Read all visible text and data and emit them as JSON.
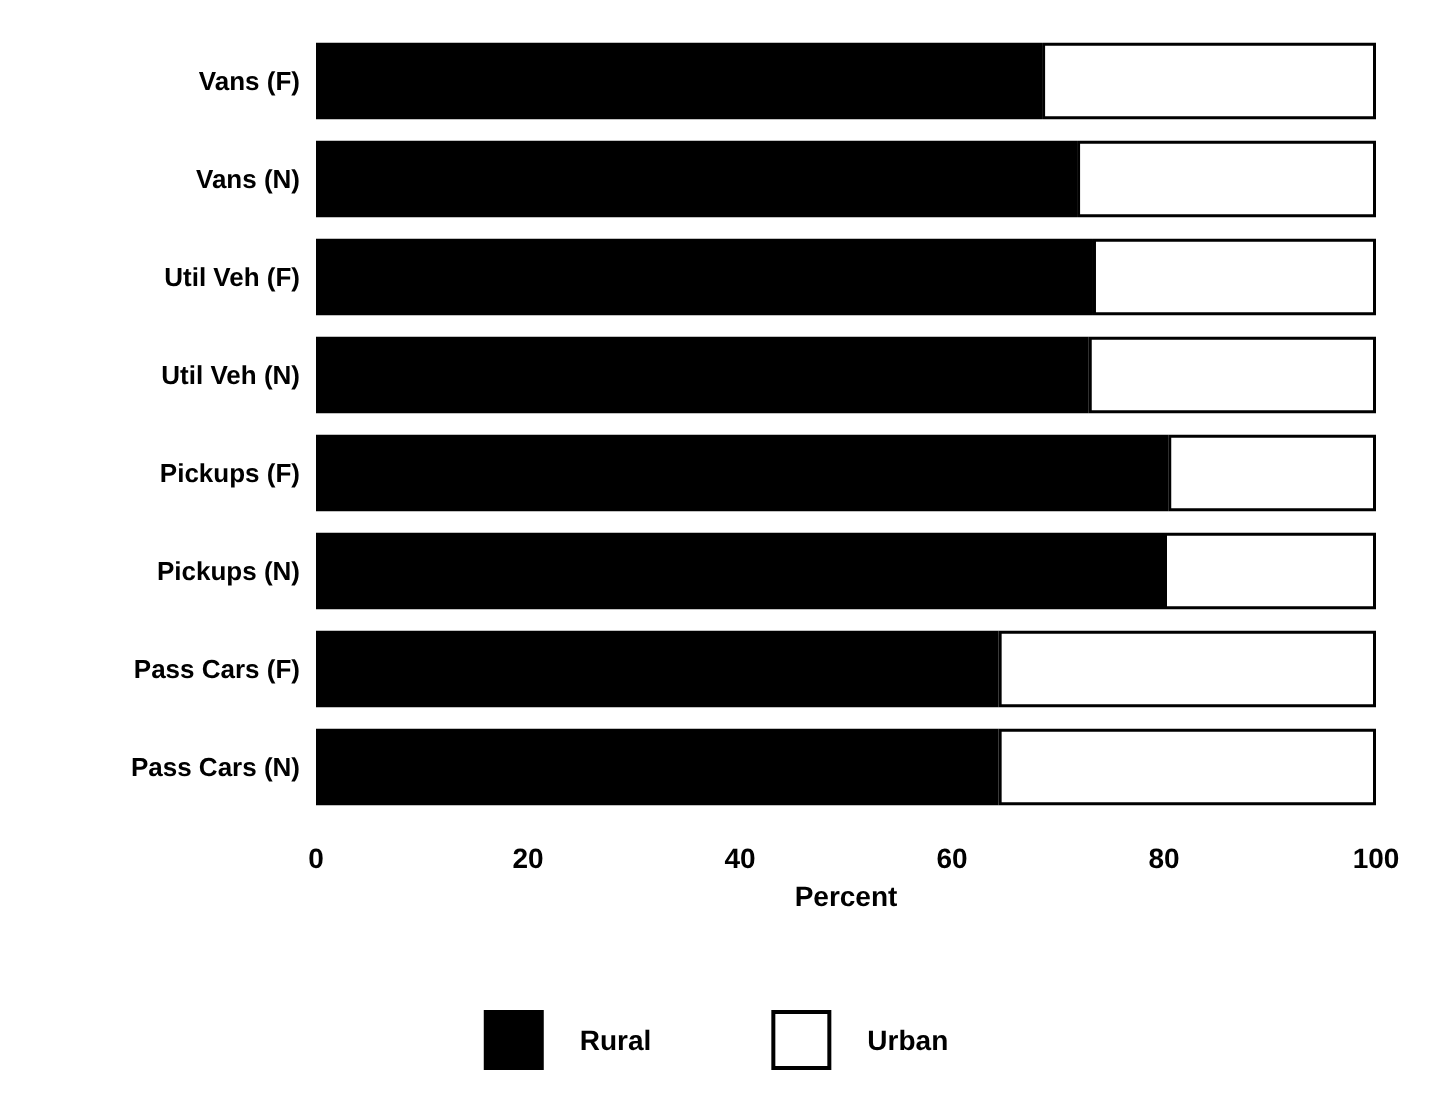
{
  "chart_data": {
    "type": "bar",
    "orientation": "horizontal",
    "stacked": true,
    "xlabel": "Percent",
    "categories": [
      "Vans (F)",
      "Vans (N)",
      "Util Veh (F)",
      "Util Veh (N)",
      "Pickups (F)",
      "Pickups (N)",
      "Pass Cars (F)",
      "Pass Cars (N)"
    ],
    "series": [
      {
        "name": "Rural",
        "color": "#000000",
        "values": [
          68.5,
          71.8,
          73.3,
          72.9,
          80.4,
          80.0,
          64.4,
          64.4
        ]
      },
      {
        "name": "Urban",
        "color": "#ffffff",
        "values": [
          31.5,
          28.2,
          26.7,
          27.1,
          19.6,
          20.0,
          35.6,
          35.6
        ]
      }
    ],
    "xlim": [
      0,
      100
    ],
    "xticks": [
      0,
      20,
      40,
      60,
      80,
      100
    ],
    "grid": false,
    "legend": "bottom"
  }
}
